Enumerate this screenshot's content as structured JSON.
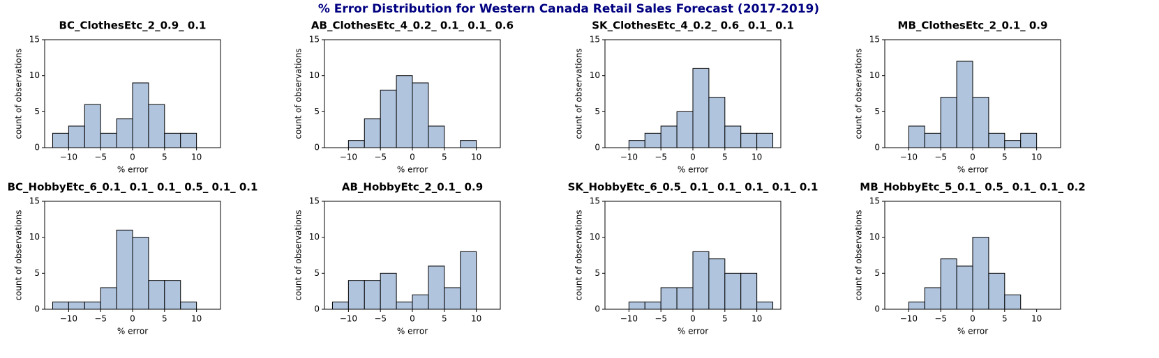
{
  "title": "% Error Distribution for Western Canada Retail Sales Forecast (2017-2019)",
  "chart_data": [
    {
      "type": "histogram",
      "title": "BC_ClothesEtc_2_0.9_ 0.1",
      "bins": [
        -12.5,
        -10,
        -7.5,
        -5,
        -2.5,
        0,
        2.5,
        5,
        7.5,
        10,
        12.5
      ],
      "values": [
        2,
        3,
        6,
        2,
        4,
        9,
        6,
        2,
        2,
        0
      ],
      "color": "#b0c4de",
      "edgecolor": "#000000",
      "xlabel": "% error",
      "ylabel": "count of observations",
      "xlim": [
        -13.75,
        13.75
      ],
      "ylim": [
        0,
        15
      ],
      "xticks": [
        {
          "value": -10,
          "label": "−10"
        },
        {
          "value": -5,
          "label": "−5"
        },
        0,
        5,
        10
      ],
      "yticks": [
        0,
        5,
        10,
        15
      ]
    },
    {
      "type": "histogram",
      "title": "AB_ClothesEtc_4_0.2_ 0.1_ 0.1_ 0.6",
      "bins": [
        -12.5,
        -10,
        -7.5,
        -5,
        -2.5,
        0,
        2.5,
        5,
        7.5,
        10,
        12.5
      ],
      "values": [
        0,
        1,
        4,
        8,
        10,
        9,
        3,
        0,
        1,
        0
      ],
      "color": "#b0c4de",
      "edgecolor": "#000000",
      "xlabel": "% error",
      "ylabel": "count of observations",
      "xlim": [
        -13.75,
        13.75
      ],
      "ylim": [
        0,
        15
      ],
      "xticks": [
        {
          "value": -10,
          "label": "−10"
        },
        {
          "value": -5,
          "label": "−5"
        },
        0,
        5,
        10
      ],
      "yticks": [
        0,
        5,
        10,
        15
      ]
    },
    {
      "type": "histogram",
      "title": "SK_ClothesEtc_4_0.2_ 0.6_ 0.1_ 0.1",
      "bins": [
        -12.5,
        -10,
        -7.5,
        -5,
        -2.5,
        0,
        2.5,
        5,
        7.5,
        10,
        12.5
      ],
      "values": [
        0,
        1,
        2,
        3,
        5,
        11,
        7,
        3,
        2,
        2
      ],
      "color": "#b0c4de",
      "edgecolor": "#000000",
      "xlabel": "% error",
      "ylabel": "count of observations",
      "xlim": [
        -13.75,
        13.75
      ],
      "ylim": [
        0,
        15
      ],
      "xticks": [
        {
          "value": -10,
          "label": "−10"
        },
        {
          "value": -5,
          "label": "−5"
        },
        0,
        5,
        10
      ],
      "yticks": [
        0,
        5,
        10,
        15
      ]
    },
    {
      "type": "histogram",
      "title": "MB_ClothesEtc_2_0.1_ 0.9",
      "bins": [
        -12.5,
        -10,
        -7.5,
        -5,
        -2.5,
        0,
        2.5,
        5,
        7.5,
        10,
        12.5
      ],
      "values": [
        0,
        3,
        2,
        7,
        12,
        7,
        2,
        1,
        2,
        0
      ],
      "color": "#b0c4de",
      "edgecolor": "#000000",
      "xlabel": "% error",
      "ylabel": "count of observations",
      "xlim": [
        -13.75,
        13.75
      ],
      "ylim": [
        0,
        15
      ],
      "xticks": [
        {
          "value": -10,
          "label": "−10"
        },
        {
          "value": -5,
          "label": "−5"
        },
        0,
        5,
        10
      ],
      "yticks": [
        0,
        5,
        10,
        15
      ]
    },
    {
      "type": "histogram",
      "title": "BC_HobbyEtc_6_0.1_ 0.1_ 0.1_ 0.5_ 0.1_ 0.1",
      "bins": [
        -12.5,
        -10,
        -7.5,
        -5,
        -2.5,
        0,
        2.5,
        5,
        7.5,
        10,
        12.5
      ],
      "values": [
        1,
        1,
        1,
        3,
        11,
        10,
        4,
        4,
        1,
        0
      ],
      "color": "#b0c4de",
      "edgecolor": "#000000",
      "xlabel": "% error",
      "ylabel": "count of observations",
      "xlim": [
        -13.75,
        13.75
      ],
      "ylim": [
        0,
        15
      ],
      "xticks": [
        {
          "value": -10,
          "label": "−10"
        },
        {
          "value": -5,
          "label": "−5"
        },
        0,
        5,
        10
      ],
      "yticks": [
        0,
        5,
        10,
        15
      ]
    },
    {
      "type": "histogram",
      "title": "AB_HobbyEtc_2_0.1_ 0.9",
      "bins": [
        -12.5,
        -10,
        -7.5,
        -5,
        -2.5,
        0,
        2.5,
        5,
        7.5,
        10,
        12.5
      ],
      "values": [
        1,
        4,
        4,
        5,
        1,
        2,
        6,
        3,
        8,
        0
      ],
      "color": "#b0c4de",
      "edgecolor": "#000000",
      "xlabel": "% error",
      "ylabel": "count of observations",
      "xlim": [
        -13.75,
        13.75
      ],
      "ylim": [
        0,
        15
      ],
      "xticks": [
        {
          "value": -10,
          "label": "−10"
        },
        {
          "value": -5,
          "label": "−5"
        },
        0,
        5,
        10
      ],
      "yticks": [
        0,
        5,
        10,
        15
      ]
    },
    {
      "type": "histogram",
      "title": "SK_HobbyEtc_6_0.5_ 0.1_ 0.1_ 0.1_ 0.1_ 0.1",
      "bins": [
        -12.5,
        -10,
        -7.5,
        -5,
        -2.5,
        0,
        2.5,
        5,
        7.5,
        10,
        12.5
      ],
      "values": [
        0,
        1,
        1,
        3,
        3,
        8,
        7,
        5,
        5,
        1
      ],
      "color": "#b0c4de",
      "edgecolor": "#000000",
      "xlabel": "% error",
      "ylabel": "count of observations",
      "xlim": [
        -13.75,
        13.75
      ],
      "ylim": [
        0,
        15
      ],
      "xticks": [
        {
          "value": -10,
          "label": "−10"
        },
        {
          "value": -5,
          "label": "−5"
        },
        0,
        5,
        10
      ],
      "yticks": [
        0,
        5,
        10,
        15
      ]
    },
    {
      "type": "histogram",
      "title": "MB_HobbyEtc_5_0.1_ 0.5_ 0.1_ 0.1_ 0.2",
      "bins": [
        -12.5,
        -10,
        -7.5,
        -5,
        -2.5,
        0,
        2.5,
        5,
        7.5,
        10,
        12.5
      ],
      "values": [
        0,
        1,
        3,
        7,
        6,
        10,
        5,
        2,
        0,
        0
      ],
      "color": "#b0c4de",
      "edgecolor": "#000000",
      "xlabel": "% error",
      "ylabel": "count of observations",
      "xlim": [
        -13.75,
        13.75
      ],
      "ylim": [
        0,
        15
      ],
      "xticks": [
        {
          "value": -10,
          "label": "−10"
        },
        {
          "value": -5,
          "label": "−5"
        },
        0,
        5,
        10
      ],
      "yticks": [
        0,
        5,
        10,
        15
      ]
    }
  ]
}
